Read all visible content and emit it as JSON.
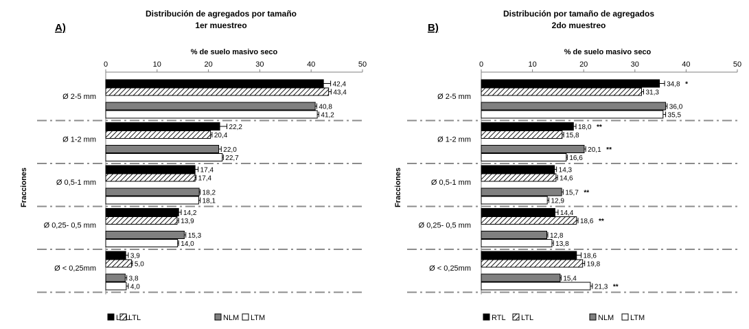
{
  "chart_data": [
    {
      "type": "bar",
      "orientation": "horizontal",
      "panel_label": "A)",
      "title": "Distribución de agregados por tamaño",
      "subtitle": "1er muestreo",
      "xlabel": "% de suelo masivo seco",
      "ylabel": "Fracciones",
      "xlim": [
        0,
        50
      ],
      "xticks": [
        "0",
        "10",
        "20",
        "30",
        "40",
        "50"
      ],
      "categories": [
        "Ø  2-5 mm",
        "Ø  1-2 mm",
        "Ø  0,5-1 mm",
        "Ø 0,25- 0,5 mm",
        "Ø < 0,25mm"
      ],
      "legend_position": "bottom",
      "series": [
        {
          "name": "LRL",
          "values": [
            42.4,
            22.2,
            17.4,
            14.2,
            3.9
          ],
          "labels": [
            "42,4",
            "22,2",
            "17,4",
            "14,2",
            "3,9"
          ],
          "marks": [
            "",
            "",
            "",
            "",
            ""
          ],
          "errors": [
            1.4,
            1.4,
            0.6,
            0.5,
            0.5
          ],
          "fill": "#000000"
        },
        {
          "name": "LTL",
          "values": [
            43.4,
            20.4,
            17.4,
            13.9,
            5.0
          ],
          "labels": [
            "43,4",
            "20,4",
            "17,4",
            "13,9",
            "5,0"
          ],
          "marks": [
            "",
            "",
            "",
            "",
            ""
          ],
          "errors": [
            0.5,
            0.3,
            0.2,
            0.3,
            0.2
          ],
          "fill": "hatch"
        },
        {
          "name": "NLM",
          "values": [
            40.8,
            22.0,
            18.2,
            15.3,
            3.8
          ],
          "labels": [
            "40,8",
            "22,0",
            "18,2",
            "15,3",
            "3,8"
          ],
          "marks": [
            "",
            "",
            "",
            "",
            ""
          ],
          "errors": [
            0.3,
            0.5,
            0.2,
            0.3,
            0.3
          ],
          "fill": "#808080"
        },
        {
          "name": "LTM",
          "values": [
            41.2,
            22.7,
            18.1,
            14.0,
            4.0
          ],
          "labels": [
            "41,2",
            "22,7",
            "18,1",
            "14,0",
            "4,0"
          ],
          "marks": [
            "",
            "",
            "",
            "",
            ""
          ],
          "errors": [
            0.3,
            0.2,
            0.3,
            0.2,
            0.4
          ],
          "fill": "#ffffff"
        }
      ]
    },
    {
      "type": "bar",
      "orientation": "horizontal",
      "panel_label": "B)",
      "title": "Distribución por tamaño de agregados",
      "subtitle": "2do muestreo",
      "xlabel": "% de suelo masivo seco",
      "ylabel": "Fracciones",
      "xlim": [
        0,
        50
      ],
      "xticks": [
        "0",
        "10",
        "20",
        "30",
        "40",
        "50"
      ],
      "categories": [
        "Ø  2-5 mm",
        "Ø  1-2 mm",
        "Ø  0,5-1 mm",
        "Ø 0,25- 0,5 mm",
        "Ø < 0,25mm"
      ],
      "legend_position": "bottom",
      "series": [
        {
          "name": "RTL",
          "values": [
            34.8,
            18.0,
            14.3,
            14.4,
            18.6
          ],
          "labels": [
            "34,8",
            "18,0",
            "14,3",
            "14,4",
            "18,6"
          ],
          "marks": [
            "*",
            "**",
            "",
            "",
            ""
          ],
          "errors": [
            1.0,
            0.5,
            0.4,
            0.6,
            0.9
          ],
          "fill": "#000000"
        },
        {
          "name": "LTL",
          "values": [
            31.3,
            15.8,
            14.6,
            18.6,
            19.8
          ],
          "labels": [
            "31,3",
            "15,8",
            "14,6",
            "18,6",
            "19,8"
          ],
          "marks": [
            "",
            "",
            "",
            "**",
            ""
          ],
          "errors": [
            0.4,
            0.3,
            0.3,
            0.3,
            0.4
          ],
          "fill": "hatch"
        },
        {
          "name": "NLM",
          "values": [
            36.0,
            20.1,
            15.7,
            12.8,
            15.4
          ],
          "labels": [
            "36,0",
            "20,1",
            "15,7",
            "12,8",
            "15,4"
          ],
          "marks": [
            "",
            "**",
            "**",
            "",
            ""
          ],
          "errors": [
            0.3,
            0.3,
            0.3,
            0.2,
            0.2
          ],
          "fill": "#808080"
        },
        {
          "name": "LTM",
          "values": [
            35.5,
            16.6,
            12.9,
            13.8,
            21.3
          ],
          "labels": [
            "35,5",
            "16,6",
            "12,9",
            "13,8",
            "21,3"
          ],
          "marks": [
            "",
            "",
            "",
            "",
            "**"
          ],
          "errors": [
            0.5,
            0.2,
            0.3,
            0.3,
            0.4
          ],
          "fill": "#ffffff"
        }
      ]
    }
  ]
}
